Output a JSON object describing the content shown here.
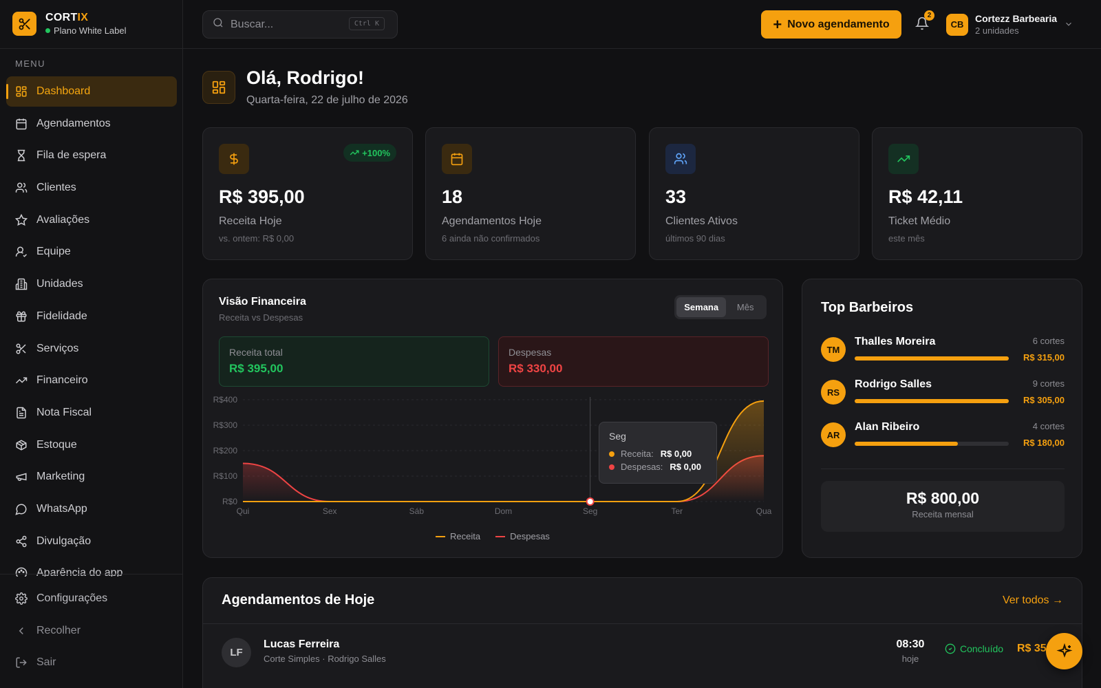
{
  "brand": {
    "name_main": "CORT",
    "name_accent": "IX",
    "plan": "Plano White Label"
  },
  "sidebar": {
    "menu_title": "MENU",
    "items": [
      {
        "label": "Dashboard",
        "icon": "grid-icon"
      },
      {
        "label": "Agendamentos",
        "icon": "calendar-icon"
      },
      {
        "label": "Fila de espera",
        "icon": "hourglass-icon"
      },
      {
        "label": "Clientes",
        "icon": "users-icon"
      },
      {
        "label": "Avaliações",
        "icon": "star-icon"
      },
      {
        "label": "Equipe",
        "icon": "user-check-icon"
      },
      {
        "label": "Unidades",
        "icon": "building-icon"
      },
      {
        "label": "Fidelidade",
        "icon": "gift-icon"
      },
      {
        "label": "Serviços",
        "icon": "scissors-icon"
      },
      {
        "label": "Financeiro",
        "icon": "trending-up-icon"
      },
      {
        "label": "Nota Fiscal",
        "icon": "file-icon"
      },
      {
        "label": "Estoque",
        "icon": "box-icon"
      },
      {
        "label": "Marketing",
        "icon": "megaphone-icon"
      },
      {
        "label": "WhatsApp",
        "icon": "chat-icon"
      },
      {
        "label": "Divulgação",
        "icon": "share-icon"
      },
      {
        "label": "Aparência do app",
        "icon": "palette-icon"
      }
    ],
    "bottom": [
      {
        "label": "Configurações",
        "icon": "gear-icon"
      },
      {
        "label": "Recolher",
        "icon": "chevron-left-icon"
      },
      {
        "label": "Sair",
        "icon": "logout-icon"
      }
    ]
  },
  "header": {
    "search_placeholder": "Buscar...",
    "search_shortcut": "Ctrl K",
    "new_button": "Novo agendamento",
    "notif_count": "2",
    "account_initials": "CB",
    "account_name": "Cortezz Barbearia",
    "account_sub": "2 unidades"
  },
  "greeting": {
    "title": "Olá, Rodrigo!",
    "date": "Quarta-feira, 22 de julho de 2026"
  },
  "stats": [
    {
      "value": "R$ 395,00",
      "label": "Receita Hoje",
      "sub": "vs. ontem: R$ 0,00",
      "trend": "+100%",
      "icon": "dollar-icon"
    },
    {
      "value": "18",
      "label": "Agendamentos Hoje",
      "sub": "6 ainda não confirmados",
      "icon": "calendar-icon"
    },
    {
      "value": "33",
      "label": "Clientes Ativos",
      "sub": "últimos 90 dias",
      "icon": "users-icon"
    },
    {
      "value": "R$ 42,11",
      "label": "Ticket Médio",
      "sub": "este mês",
      "icon": "trending-up-icon"
    }
  ],
  "finance": {
    "title": "Visão Financeira",
    "subtitle": "Receita vs Despesas",
    "toggle": [
      "Semana",
      "Mês"
    ],
    "revenue_label": "Receita total",
    "revenue_value": "R$ 395,00",
    "expense_label": "Despesas",
    "expense_value": "R$ 330,00",
    "tooltip": {
      "title": "Seg",
      "revenue_label": "Receita:",
      "revenue_value": "R$ 0,00",
      "expense_label": "Despesas:",
      "expense_value": "R$ 0,00"
    }
  },
  "chart_data": {
    "type": "area",
    "categories": [
      "Qui",
      "Sex",
      "Sáb",
      "Dom",
      "Seg",
      "Ter",
      "Qua"
    ],
    "series": [
      {
        "name": "Receita",
        "values": [
          0,
          0,
          0,
          0,
          0,
          0,
          395
        ],
        "color": "#f5a00f"
      },
      {
        "name": "Despesas",
        "values": [
          150,
          0,
          0,
          0,
          0,
          0,
          180
        ],
        "color": "#ef4444"
      }
    ],
    "yticks": [
      "R$0",
      "R$100",
      "R$200",
      "R$300",
      "R$400"
    ],
    "ylim": [
      0,
      400
    ],
    "legend": "bottom"
  },
  "top_barbers": {
    "title": "Top Barbeiros",
    "items": [
      {
        "initials": "TM",
        "name": "Thalles Moreira",
        "cuts": "6 cortes",
        "amount": "R$ 315,00",
        "share": 1.0
      },
      {
        "initials": "RS",
        "name": "Rodrigo Salles",
        "cuts": "9 cortes",
        "amount": "R$ 305,00",
        "share": 1.0
      },
      {
        "initials": "AR",
        "name": "Alan Ribeiro",
        "cuts": "4 cortes",
        "amount": "R$ 180,00",
        "share": 0.67
      }
    ],
    "monthly_value": "R$ 800,00",
    "monthly_label": "Receita mensal"
  },
  "appointments": {
    "title": "Agendamentos de Hoje",
    "see_all": "Ver todos →",
    "rows": [
      {
        "initials": "LF",
        "name": "Lucas Ferreira",
        "desc": "Corte Simples · Rodrigo Salles",
        "time": "08:30",
        "when": "hoje",
        "status": "Concluído",
        "price": "R$ 35"
      }
    ]
  },
  "colors": {
    "accent": "#f5a00f",
    "success": "#22c55e",
    "danger": "#ef4444",
    "background": "#111113"
  }
}
